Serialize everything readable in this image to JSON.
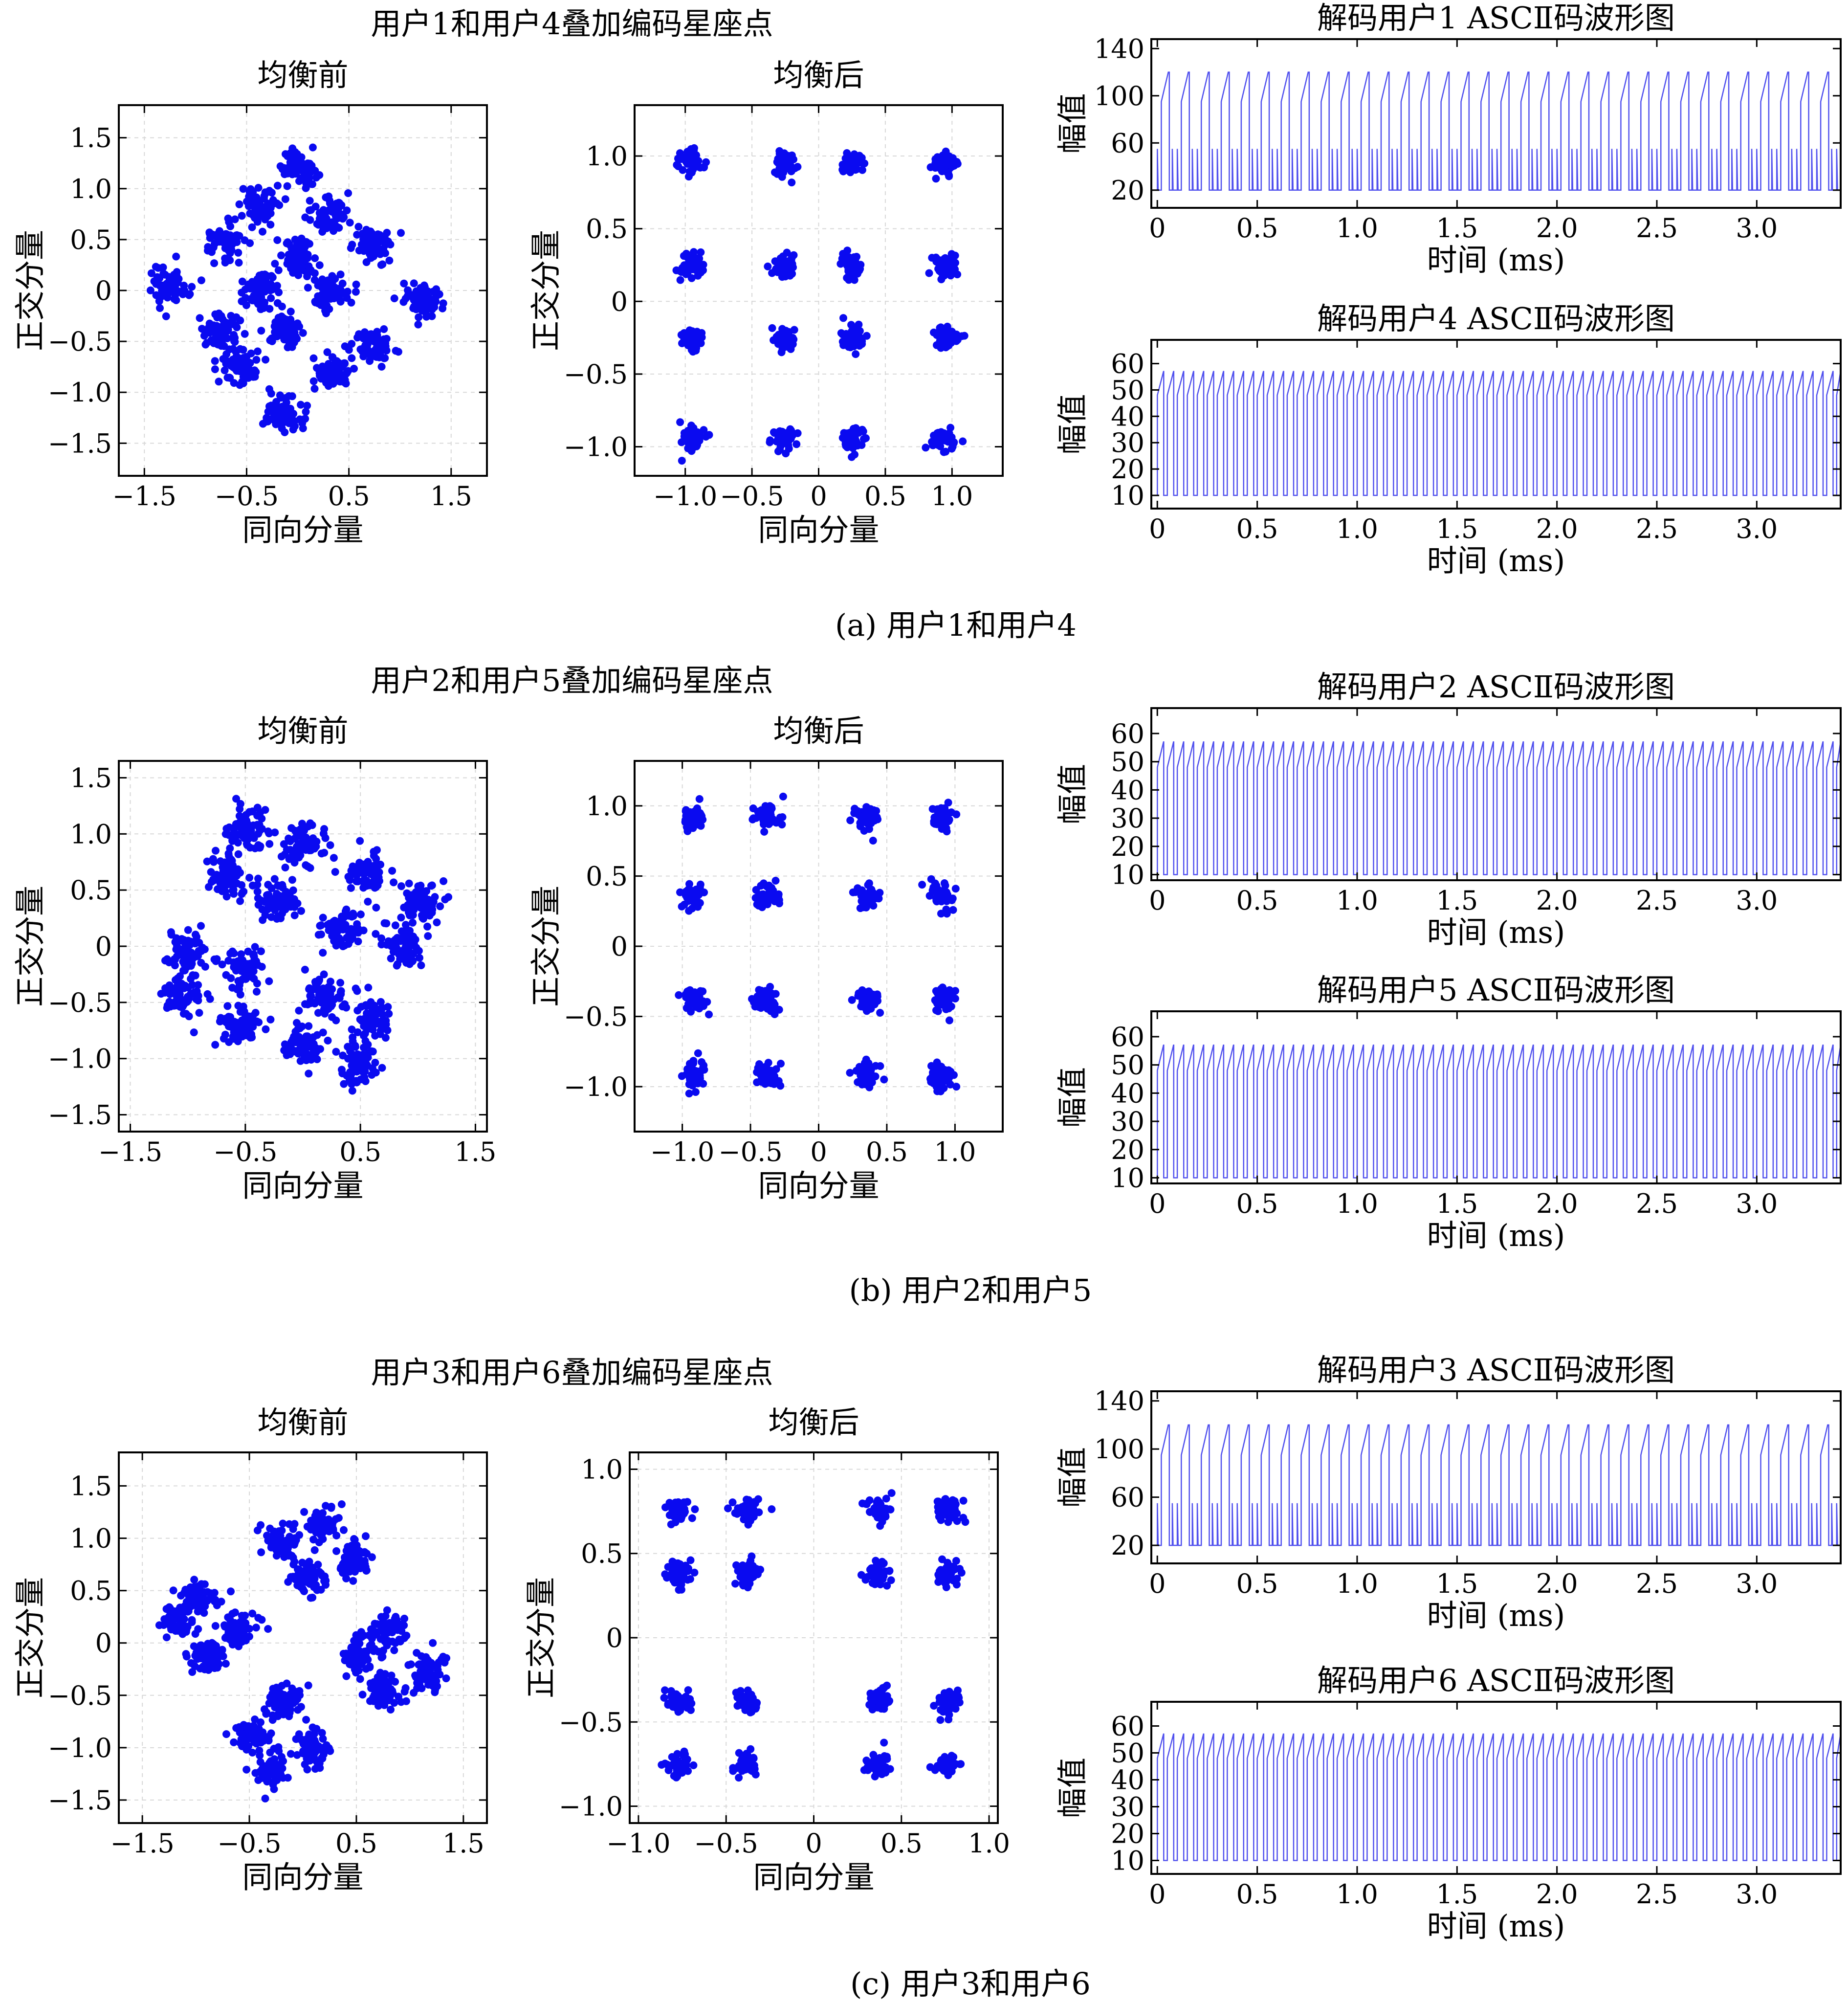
{
  "chart_data": [
    {
      "id": "a",
      "caption": "(a) 用户1和用户4",
      "suptitle": "用户1和用户4叠加编码星座点",
      "before": {
        "type": "scatter",
        "title": "均衡前",
        "xlabel": "同向分量",
        "ylabel": "正交分量",
        "xlim": [
          -1.75,
          1.85
        ],
        "ylim": [
          -1.82,
          1.82
        ],
        "xticks": [
          -1.5,
          -0.5,
          0.5,
          1.5
        ],
        "xtick_labels": [
          "−1.5",
          "−0.5",
          "0.5",
          "1.5"
        ],
        "yticks": [
          1.5,
          1.0,
          0.5,
          0,
          -0.5,
          -1.0,
          -1.5
        ],
        "ytick_labels": [
          "1.5",
          "1.0",
          "0.5",
          "0",
          "−0.5",
          "−1.0",
          "−1.5"
        ],
        "grid": true,
        "cluster_centers": [
          [
            0.0,
            1.22
          ],
          [
            -0.35,
            0.82
          ],
          [
            0.32,
            0.75
          ],
          [
            -0.72,
            0.5
          ],
          [
            0.72,
            0.45
          ],
          [
            0.0,
            0.33
          ],
          [
            -0.35,
            0.0
          ],
          [
            0.3,
            0.0
          ],
          [
            -1.25,
            0.05
          ],
          [
            1.2,
            -0.1
          ],
          [
            -0.75,
            -0.4
          ],
          [
            0.75,
            -0.55
          ],
          [
            -0.1,
            -0.38
          ],
          [
            -0.55,
            -0.75
          ],
          [
            0.35,
            -0.78
          ],
          [
            -0.12,
            -1.22
          ]
        ],
        "cluster_spread": 0.09,
        "points_per_cluster": 70,
        "color": "#0a0af0"
      },
      "after": {
        "type": "scatter",
        "title": "均衡后",
        "xlabel": "同向分量",
        "ylabel": "正交分量",
        "xlim": [
          -1.38,
          1.38
        ],
        "ylim": [
          -1.2,
          1.35
        ],
        "xticks": [
          -1.0,
          -0.5,
          0,
          0.5,
          1.0
        ],
        "xtick_labels": [
          "−1.0",
          "−0.5",
          "0",
          "0.5",
          "1.0"
        ],
        "yticks": [
          1.0,
          0.5,
          0,
          -0.5,
          -1.0
        ],
        "ytick_labels": [
          "1.0",
          "0.5",
          "0",
          "−0.5",
          "−1.0"
        ],
        "grid": true,
        "cluster_x": [
          -0.95,
          -0.25,
          0.25,
          0.95
        ],
        "cluster_y": [
          0.95,
          0.25,
          -0.25,
          -0.95
        ],
        "cluster_spread": 0.045,
        "points_per_cluster": 45,
        "color": "#0a0af0"
      },
      "wave_top": {
        "type": "line",
        "title": "解码用户1 ASCⅡ码波形图",
        "xlabel": "时间 (ms)",
        "ylabel": "幅值",
        "xlim": [
          -0.03,
          3.42
        ],
        "ylim": [
          5,
          148
        ],
        "xticks": [
          0,
          0.5,
          1.0,
          1.5,
          2.0,
          2.5,
          3.0
        ],
        "xtick_labels": [
          "0",
          "0.5",
          "1.0",
          "1.5",
          "2.0",
          "2.5",
          "3.0"
        ],
        "yticks": [
          140,
          100,
          60,
          20
        ],
        "ytick_labels": [
          "140",
          "100",
          "60",
          "20"
        ],
        "period": 0.1,
        "pattern": "ascii_high",
        "color": "#5050ee"
      },
      "wave_bottom": {
        "type": "line",
        "title": "解码用户4 ASCⅡ码波形图",
        "xlabel": "时间 (ms)",
        "ylabel": "幅值",
        "xlim": [
          -0.03,
          3.42
        ],
        "ylim": [
          5,
          69
        ],
        "xticks": [
          0,
          0.5,
          1.0,
          1.5,
          2.0,
          2.5,
          3.0
        ],
        "xtick_labels": [
          "0",
          "0.5",
          "1.0",
          "1.5",
          "2.0",
          "2.5",
          "3.0"
        ],
        "yticks": [
          60,
          50,
          40,
          30,
          20,
          10
        ],
        "ytick_labels": [
          "60",
          "50",
          "40",
          "30",
          "20",
          "10"
        ],
        "period": 0.05,
        "pattern": "ascii_low",
        "color": "#5050ee"
      }
    },
    {
      "id": "b",
      "caption": "(b) 用户2和用户5",
      "suptitle": "用户2和用户5叠加编码星座点",
      "before": {
        "type": "scatter",
        "title": "均衡前",
        "xlabel": "同向分量",
        "ylabel": "正交分量",
        "xlim": [
          -1.6,
          1.6
        ],
        "ylim": [
          -1.65,
          1.65
        ],
        "xticks": [
          -1.5,
          -0.5,
          0.5,
          1.5
        ],
        "xtick_labels": [
          "−1.5",
          "−0.5",
          "0.5",
          "1.5"
        ],
        "yticks": [
          1.5,
          1.0,
          0.5,
          0,
          -0.5,
          -1.0,
          -1.5
        ],
        "ytick_labels": [
          "1.5",
          "1.0",
          "0.5",
          "0",
          "−0.5",
          "−1.0",
          "−1.5"
        ],
        "grid": true,
        "cluster_centers": [
          [
            -0.5,
            1.05
          ],
          [
            0.0,
            0.9
          ],
          [
            0.55,
            0.65
          ],
          [
            -0.65,
            0.6
          ],
          [
            -0.22,
            0.4
          ],
          [
            0.35,
            0.15
          ],
          [
            1.05,
            0.4
          ],
          [
            0.9,
            0.0
          ],
          [
            -1.0,
            -0.05
          ],
          [
            -0.5,
            -0.2
          ],
          [
            0.2,
            -0.45
          ],
          [
            -1.05,
            -0.45
          ],
          [
            0.6,
            -0.65
          ],
          [
            -0.55,
            -0.7
          ],
          [
            0.0,
            -0.9
          ],
          [
            0.5,
            -1.05
          ]
        ],
        "cluster_spread": 0.09,
        "points_per_cluster": 70,
        "color": "#0a0af0"
      },
      "after": {
        "type": "scatter",
        "title": "均衡后",
        "xlabel": "同向分量",
        "ylabel": "正交分量",
        "xlim": [
          -1.35,
          1.35
        ],
        "ylim": [
          -1.32,
          1.32
        ],
        "xticks": [
          -1.0,
          -0.5,
          0,
          0.5,
          1.0
        ],
        "xtick_labels": [
          "−1.0",
          "−0.5",
          "0",
          "0.5",
          "1.0"
        ],
        "yticks": [
          1.0,
          0.5,
          0,
          -0.5,
          -1.0
        ],
        "ytick_labels": [
          "1.0",
          "0.5",
          "0",
          "−0.5",
          "−1.0"
        ],
        "grid": true,
        "cluster_x": [
          -0.92,
          -0.38,
          0.35,
          0.9
        ],
        "cluster_y": [
          0.92,
          0.36,
          -0.38,
          -0.92
        ],
        "cluster_spread": 0.045,
        "points_per_cluster": 45,
        "color": "#0a0af0"
      },
      "wave_top": {
        "type": "line",
        "title": "解码用户2 ASCⅡ码波形图",
        "xlabel": "时间 (ms)",
        "ylabel": "幅值",
        "xlim": [
          -0.03,
          3.42
        ],
        "ylim": [
          8,
          69
        ],
        "xticks": [
          0,
          0.5,
          1.0,
          1.5,
          2.0,
          2.5,
          3.0
        ],
        "xtick_labels": [
          "0",
          "0.5",
          "1.0",
          "1.5",
          "2.0",
          "2.5",
          "3.0"
        ],
        "yticks": [
          60,
          50,
          40,
          30,
          20,
          10
        ],
        "ytick_labels": [
          "60",
          "50",
          "40",
          "30",
          "20",
          "10"
        ],
        "period": 0.05,
        "pattern": "ascii_low",
        "color": "#5050ee"
      },
      "wave_bottom": {
        "type": "line",
        "title": "解码用户5 ASCⅡ码波形图",
        "xlabel": "时间 (ms)",
        "ylabel": "幅值",
        "xlim": [
          -0.03,
          3.42
        ],
        "ylim": [
          8,
          69
        ],
        "xticks": [
          0,
          0.5,
          1.0,
          1.5,
          2.0,
          2.5,
          3.0
        ],
        "xtick_labels": [
          "0",
          "0.5",
          "1.0",
          "1.5",
          "2.0",
          "2.5",
          "3.0"
        ],
        "yticks": [
          60,
          50,
          40,
          30,
          20,
          10
        ],
        "ytick_labels": [
          "60",
          "50",
          "40",
          "30",
          "20",
          "10"
        ],
        "period": 0.05,
        "pattern": "ascii_low",
        "color": "#5050ee"
      }
    },
    {
      "id": "c",
      "caption": "(c) 用户3和用户6",
      "suptitle": "用户3和用户6叠加编码星座点",
      "before": {
        "type": "scatter",
        "title": "均衡前",
        "xlabel": "同向分量",
        "ylabel": "正交分量",
        "xlim": [
          -1.72,
          1.72
        ],
        "ylim": [
          -1.72,
          1.82
        ],
        "xticks": [
          -1.5,
          -0.5,
          0.5,
          1.5
        ],
        "xtick_labels": [
          "−1.5",
          "−0.5",
          "0.5",
          "1.5"
        ],
        "yticks": [
          1.5,
          1.0,
          0.5,
          0,
          -0.5,
          -1.0,
          -1.5
        ],
        "ytick_labels": [
          "1.5",
          "1.0",
          "0.5",
          "0",
          "−0.5",
          "−1.0",
          "−1.5"
        ],
        "grid": true,
        "cluster_centers": [
          [
            0.2,
            1.15
          ],
          [
            -0.2,
            0.95
          ],
          [
            0.48,
            0.8
          ],
          [
            0.05,
            0.62
          ],
          [
            -1.18,
            0.22
          ],
          [
            -0.95,
            0.45
          ],
          [
            -0.62,
            0.12
          ],
          [
            -0.9,
            -0.15
          ],
          [
            0.8,
            0.12
          ],
          [
            1.15,
            -0.28
          ],
          [
            0.55,
            -0.12
          ],
          [
            0.75,
            -0.45
          ],
          [
            -0.18,
            -0.55
          ],
          [
            -0.5,
            -0.88
          ],
          [
            0.1,
            -1.0
          ],
          [
            -0.3,
            -1.2
          ]
        ],
        "cluster_spread": 0.08,
        "points_per_cluster": 70,
        "color": "#0a0af0"
      },
      "after": {
        "type": "scatter",
        "title": "均衡后",
        "xlabel": "同向分量",
        "ylabel": "正交分量",
        "xlim": [
          -1.05,
          1.05
        ],
        "ylim": [
          -1.1,
          1.1
        ],
        "xticks": [
          -1.0,
          -0.5,
          0,
          0.5,
          1.0
        ],
        "xtick_labels": [
          "−1.0",
          "−0.5",
          "0",
          "0.5",
          "1.0"
        ],
        "yticks": [
          1.0,
          0.5,
          0,
          -0.5,
          -1.0
        ],
        "ytick_labels": [
          "1.0",
          "0.5",
          "0",
          "−0.5",
          "−1.0"
        ],
        "grid": true,
        "cluster_x": [
          -0.77,
          -0.38,
          0.37,
          0.77
        ],
        "cluster_y": [
          0.75,
          0.38,
          -0.38,
          -0.75
        ],
        "cluster_spread": 0.035,
        "points_per_cluster": 45,
        "color": "#0a0af0"
      },
      "wave_top": {
        "type": "line",
        "title": "解码用户3 ASCⅡ码波形图",
        "xlabel": "时间 (ms)",
        "ylabel": "幅值",
        "xlim": [
          -0.03,
          3.42
        ],
        "ylim": [
          5,
          148
        ],
        "xticks": [
          0,
          0.5,
          1.0,
          1.5,
          2.0,
          2.5,
          3.0
        ],
        "xtick_labels": [
          "0",
          "0.5",
          "1.0",
          "1.5",
          "2.0",
          "2.5",
          "3.0"
        ],
        "yticks": [
          140,
          100,
          60,
          20
        ],
        "ytick_labels": [
          "140",
          "100",
          "60",
          "20"
        ],
        "period": 0.1,
        "pattern": "ascii_high",
        "color": "#5050ee"
      },
      "wave_bottom": {
        "type": "line",
        "title": "解码用户6 ASCⅡ码波形图",
        "xlabel": "时间 (ms)",
        "ylabel": "幅值",
        "xlim": [
          -0.03,
          3.42
        ],
        "ylim": [
          5,
          69
        ],
        "xticks": [
          0,
          0.5,
          1.0,
          1.5,
          2.0,
          2.5,
          3.0
        ],
        "xtick_labels": [
          "0",
          "0.5",
          "1.0",
          "1.5",
          "2.0",
          "2.5",
          "3.0"
        ],
        "yticks": [
          60,
          50,
          40,
          30,
          20,
          10
        ],
        "ytick_labels": [
          "60",
          "50",
          "40",
          "30",
          "20",
          "10"
        ],
        "period": 0.05,
        "pattern": "ascii_low",
        "color": "#5050ee"
      }
    }
  ]
}
